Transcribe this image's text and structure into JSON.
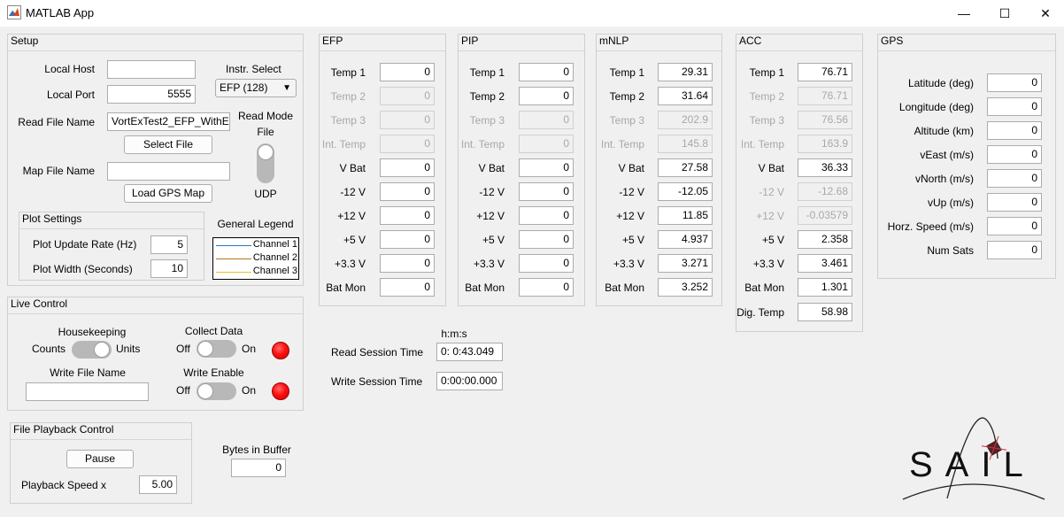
{
  "window": {
    "title": "MATLAB App",
    "minimize": "—",
    "maximize": "☐",
    "close": "✕"
  },
  "setup": {
    "title": "Setup",
    "local_host_label": "Local Host",
    "local_host_value": "",
    "local_port_label": "Local Port",
    "local_port_value": "5555",
    "instr_select_label": "Instr. Select",
    "instr_select_value": "EFP (128)",
    "read_file_label": "Read File Name",
    "read_file_value": "VortExTest2_EFP_WithE",
    "read_mode_label": "Read Mode",
    "read_mode_top": "File",
    "read_mode_bottom": "UDP",
    "select_file_button": "Select File",
    "map_file_label": "Map File Name",
    "map_file_value": "",
    "load_gps_button": "Load GPS Map"
  },
  "plot_settings": {
    "title": "Plot Settings",
    "update_rate_label": "Plot Update Rate (Hz)",
    "update_rate_value": "5",
    "width_label": "Plot Width (Seconds)",
    "width_value": "10"
  },
  "legend": {
    "title": "General Legend",
    "items": [
      {
        "label": "Channel 1",
        "color": "#2e74c8"
      },
      {
        "label": "Channel 2",
        "color": "#b8741a"
      },
      {
        "label": "Channel 3",
        "color": "#e8c22a"
      }
    ]
  },
  "live_control": {
    "title": "Live Control",
    "housekeeping_label": "Housekeeping",
    "hk_left": "Counts",
    "hk_right": "Units",
    "collect_label": "Collect Data",
    "collect_off": "Off",
    "collect_on": "On",
    "write_file_label": "Write File Name",
    "write_file_value": "",
    "write_enable_label": "Write Enable",
    "we_off": "Off",
    "we_on": "On",
    "lamp_color": "#ff0000"
  },
  "playback": {
    "title": "File Playback Control",
    "pause_button": "Pause",
    "speed_label": "Playback Speed x",
    "speed_value": "5.00"
  },
  "buffer": {
    "label": "Bytes in Buffer",
    "value": "0"
  },
  "session": {
    "hms_label": "h:m:s",
    "read_label": "Read Session Time",
    "read_value": "0: 0:43.049",
    "write_label": "Write Session Time",
    "write_value": "0:00:00.000"
  },
  "efp": {
    "title": "EFP",
    "rows": [
      {
        "label": "Temp 1",
        "value": "0"
      },
      {
        "label": "Temp 2",
        "value": "0"
      },
      {
        "label": "Temp 3",
        "value": "0"
      },
      {
        "label": "Int. Temp",
        "value": "0"
      },
      {
        "label": "V Bat",
        "value": "0"
      },
      {
        "label": "-12 V",
        "value": "0"
      },
      {
        "label": "+12 V",
        "value": "0"
      },
      {
        "label": "+5 V",
        "value": "0"
      },
      {
        "label": "+3.3 V",
        "value": "0"
      },
      {
        "label": "Bat Mon",
        "value": "0"
      }
    ]
  },
  "pip": {
    "title": "PIP",
    "rows": [
      {
        "label": "Temp 1",
        "value": "0"
      },
      {
        "label": "Temp 2",
        "value": "0"
      },
      {
        "label": "Temp 3",
        "value": "0"
      },
      {
        "label": "Int. Temp",
        "value": "0"
      },
      {
        "label": "V Bat",
        "value": "0"
      },
      {
        "label": "-12 V",
        "value": "0"
      },
      {
        "label": "+12 V",
        "value": "0"
      },
      {
        "label": "+5 V",
        "value": "0"
      },
      {
        "label": "+3.3 V",
        "value": "0"
      },
      {
        "label": "Bat Mon",
        "value": "0"
      }
    ]
  },
  "mnlp": {
    "title": "mNLP",
    "rows": [
      {
        "label": "Temp 1",
        "value": "29.31"
      },
      {
        "label": "Temp 2",
        "value": "31.64"
      },
      {
        "label": "Temp 3",
        "value": "202.9"
      },
      {
        "label": "Int. Temp",
        "value": "145.8"
      },
      {
        "label": "V Bat",
        "value": "27.58"
      },
      {
        "label": "-12 V",
        "value": "-12.05"
      },
      {
        "label": "+12 V",
        "value": "11.85"
      },
      {
        "label": "+5 V",
        "value": "4.937"
      },
      {
        "label": "+3.3 V",
        "value": "3.271"
      },
      {
        "label": "Bat Mon",
        "value": "3.252"
      }
    ]
  },
  "acc": {
    "title": "ACC",
    "rows": [
      {
        "label": "Temp 1",
        "value": "76.71"
      },
      {
        "label": "Temp 2",
        "value": "76.71"
      },
      {
        "label": "Temp 3",
        "value": "76.56"
      },
      {
        "label": "Int. Temp",
        "value": "163.9"
      },
      {
        "label": "V Bat",
        "value": "36.33"
      },
      {
        "label": "-12 V",
        "value": "-12.68"
      },
      {
        "label": "+12 V",
        "value": "-0.03579"
      },
      {
        "label": "+5 V",
        "value": "2.358"
      },
      {
        "label": "+3.3 V",
        "value": "3.461"
      },
      {
        "label": "Bat Mon",
        "value": "1.301"
      },
      {
        "label": "Dig. Temp",
        "value": "58.98"
      }
    ]
  },
  "gps": {
    "title": "GPS",
    "rows": [
      {
        "label": "Latitude (deg)",
        "value": "0"
      },
      {
        "label": "Longitude (deg)",
        "value": "0"
      },
      {
        "label": "Altitude (km)",
        "value": "0"
      },
      {
        "label": "vEast (m/s)",
        "value": "0"
      },
      {
        "label": "vNorth (m/s)",
        "value": "0"
      },
      {
        "label": "vUp (m/s)",
        "value": "0"
      },
      {
        "label": "Horz. Speed (m/s)",
        "value": "0"
      },
      {
        "label": "Num Sats",
        "value": "0"
      }
    ]
  },
  "logo": {
    "text": "SAIL"
  }
}
